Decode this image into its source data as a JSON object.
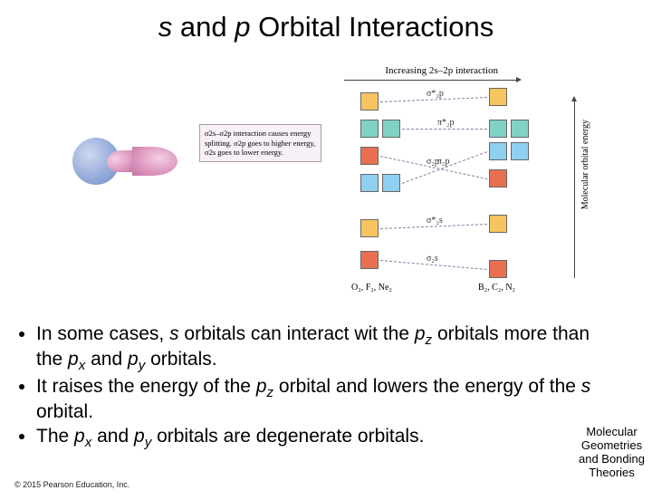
{
  "title_parts": {
    "s": "s",
    "and": " and ",
    "p": "p",
    "rest": " Orbital Interactions"
  },
  "diagram": {
    "top_label": "Increasing 2s–2p interaction",
    "callout_text": "σ2s–σ2p interaction causes energy splitting. σ2p goes to higher energy, σ2s goes to lower energy.",
    "y_axis_label": "Molecular orbital energy",
    "left_bottom": "O₂, F₂, Ne₂",
    "right_bottom": "B₂, C₂, N₂",
    "mo_labels": {
      "sigma2p_star": "σ*₂p",
      "pi2p_star": "π*₂p",
      "sigma2p": "σ₂p",
      "pi2p": "π₂p",
      "sigma2s_star": "σ*₂s",
      "sigma2s": "σ₂s"
    },
    "colors": {
      "sigma2p_star": "#f6c560",
      "pi2p_star": "#7fd2c4",
      "sigma2p": "#e87050",
      "pi2p": "#8fcff0",
      "sigma2s_star": "#f6c560",
      "sigma2s": "#e87050",
      "dash": "#8a7aa3"
    },
    "left_levels": {
      "sigma2p_star": 10,
      "pi2p_star": 40,
      "sigma2p": 70,
      "pi2p": 100,
      "sigma2s_star": 150,
      "sigma2s": 185
    },
    "right_levels": {
      "sigma2p_star": 5,
      "pi2p_star": 40,
      "sigma2p": 95,
      "pi2p": 65,
      "sigma2s_star": 145,
      "sigma2s": 195
    }
  },
  "bullets": [
    {
      "pre": "In some cases, ",
      "i1": "s",
      "mid1": " orbitals can interact wit the ",
      "i2": "p",
      "sub2": "z",
      "mid2": " orbitals more than the ",
      "i3": "p",
      "sub3": "x",
      "mid3": " and ",
      "i4": "p",
      "sub4": "y",
      "post": " orbitals."
    },
    {
      "pre": "It raises the energy of the ",
      "i1": "p",
      "sub1": "z",
      "mid1": " orbital and lowers the energy of the ",
      "i2": "s",
      "post": " orbital."
    },
    {
      "pre": "The ",
      "i1": "p",
      "sub1": "x",
      "mid1": " and ",
      "i2": "p",
      "sub2": "y",
      "post": " orbitals are degenerate orbitals."
    }
  ],
  "corner": {
    "l1": "Molecular",
    "l2": "Geometries",
    "l3": "and Bonding",
    "l4": "Theories"
  },
  "copyright": "© 2015 Pearson Education, Inc."
}
